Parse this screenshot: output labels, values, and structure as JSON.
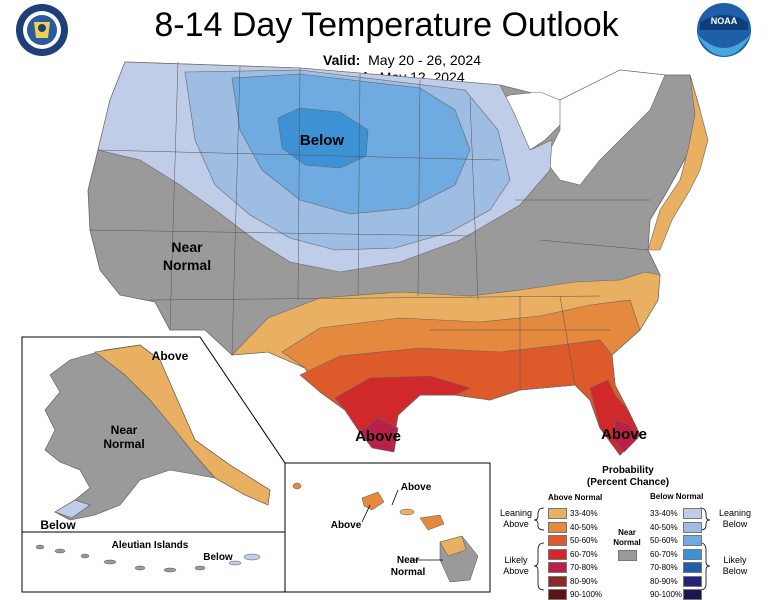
{
  "title": "8-14 Day Temperature Outlook",
  "valid_label": "Valid:",
  "valid_value": "May 20 - 26, 2024",
  "issued_label": "Issued:",
  "issued_value": "May 12, 2024",
  "logos": {
    "left": "department-of-commerce-seal",
    "right": "noaa-logo",
    "noaa_text": "NOAA"
  },
  "map_labels": {
    "conus_below": "Below",
    "conus_near_1": "Near",
    "conus_near_2": "Normal",
    "conus_above_tx": "Above",
    "conus_above_fl": "Above",
    "ak_above": "Above",
    "ak_near_1": "Near",
    "ak_near_2": "Normal",
    "ak_below": "Below",
    "aleutian_title": "Aleutian Islands",
    "aleutian_below": "Below",
    "hi_above_1": "Above",
    "hi_above_2": "Above",
    "hi_near_1": "Near",
    "hi_near_2": "Normal"
  },
  "legend": {
    "title_1": "Probability",
    "title_2": "(Percent Chance)",
    "above_header": "Above Normal",
    "below_header": "Below Normal",
    "near_label_1": "Near",
    "near_label_2": "Normal",
    "leaning_above_1": "Leaning",
    "leaning_above_2": "Above",
    "likely_above_1": "Likely",
    "likely_above_2": "Above",
    "leaning_below_1": "Leaning",
    "leaning_below_2": "Below",
    "likely_below_1": "Likely",
    "likely_below_2": "Below",
    "above": [
      {
        "range": "33-40%",
        "color": "#e8b060"
      },
      {
        "range": "40-50%",
        "color": "#e4893e"
      },
      {
        "range": "50-60%",
        "color": "#dd5a2b"
      },
      {
        "range": "60-70%",
        "color": "#d1282a"
      },
      {
        "range": "70-80%",
        "color": "#b8204a"
      },
      {
        "range": "80-90%",
        "color": "#8a2a2a"
      },
      {
        "range": "90-100%",
        "color": "#5b1414"
      }
    ],
    "below": [
      {
        "range": "33-40%",
        "color": "#c0cde8"
      },
      {
        "range": "40-50%",
        "color": "#9dbde3"
      },
      {
        "range": "50-60%",
        "color": "#6fabe0"
      },
      {
        "range": "60-70%",
        "color": "#3d92d6"
      },
      {
        "range": "70-80%",
        "color": "#1f5ea8"
      },
      {
        "range": "80-90%",
        "color": "#23237a"
      },
      {
        "range": "90-100%",
        "color": "#1a1650"
      }
    ],
    "near_color": "#9a9a9a"
  }
}
